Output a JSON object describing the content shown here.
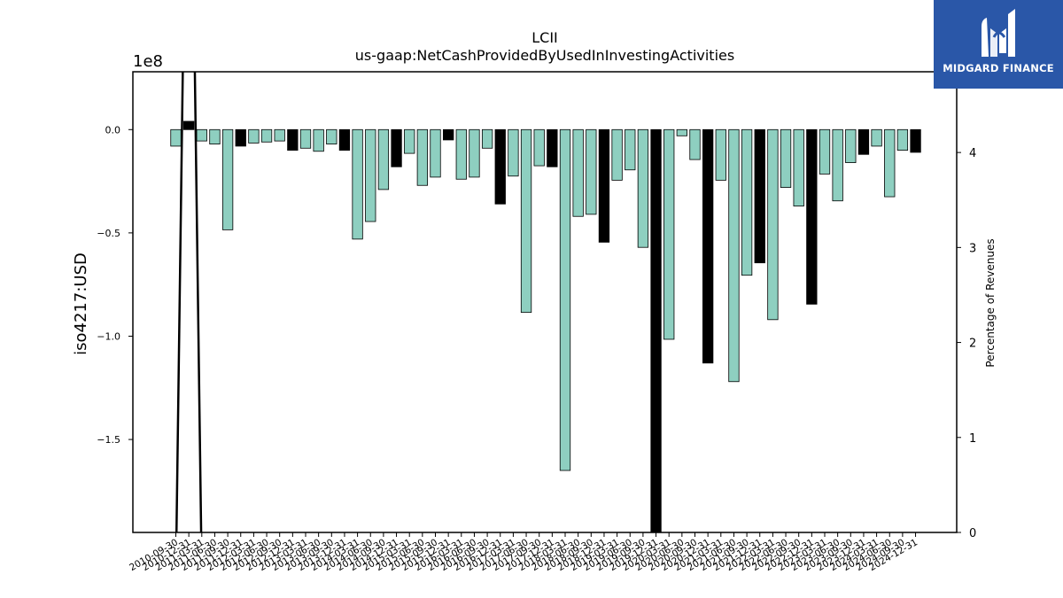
{
  "chart_data": {
    "type": "bar",
    "title": "LCII",
    "subtitle": "us-gaap:NetCashProvidedByUsedInInvestingActivities",
    "ylabel": "iso4217:USD",
    "y_offset_label": "1e8",
    "y2label": "Percentage of Revenues",
    "ylim": [
      -195000000,
      28000000
    ],
    "y2lim": [
      0,
      4.85
    ],
    "yticks": [
      {
        "value": 0,
        "label": "0.0"
      },
      {
        "value": -50000000,
        "label": "−0.5"
      },
      {
        "value": -100000000,
        "label": "−1.0"
      },
      {
        "value": -150000000,
        "label": "−1.5"
      }
    ],
    "y2ticks": [
      {
        "value": 0,
        "label": "0"
      },
      {
        "value": 1,
        "label": "1"
      },
      {
        "value": 2,
        "label": "2"
      },
      {
        "value": 3,
        "label": "3"
      },
      {
        "value": 4,
        "label": "4"
      }
    ],
    "colors": {
      "bar": "#8ecfc0",
      "annual_bar": "#000000",
      "line": "#000000"
    },
    "categories": [
      "2010-09-30",
      "2010-12-31",
      "2011-03-31",
      "2011-06-30",
      "2011-09-30",
      "2011-12-31",
      "2012-03-31",
      "2012-06-30",
      "2012-09-30",
      "2012-12-31",
      "2013-03-31",
      "2013-06-30",
      "2013-09-30",
      "2013-12-31",
      "2014-03-31",
      "2014-06-30",
      "2014-09-30",
      "2014-12-31",
      "2015-03-31",
      "2015-06-30",
      "2015-09-30",
      "2015-12-31",
      "2016-03-31",
      "2016-06-30",
      "2016-09-30",
      "2016-12-31",
      "2017-03-31",
      "2017-06-30",
      "2017-09-30",
      "2017-12-31",
      "2018-03-31",
      "2018-06-30",
      "2018-09-30",
      "2018-12-31",
      "2019-03-31",
      "2019-06-30",
      "2019-09-30",
      "2019-12-31",
      "2020-03-31",
      "2020-06-30",
      "2020-09-30",
      "2020-12-31",
      "2021-03-31",
      "2021-06-30",
      "2021-09-30",
      "2021-12-31",
      "2022-03-31",
      "2022-06-30",
      "2022-09-30",
      "2022-12-31",
      "2023-03-31",
      "2023-06-30",
      "2023-09-30",
      "2023-12-31",
      "2024-03-31",
      "2024-06-30",
      "2024-09-30",
      "2024-12-31"
    ],
    "tick_labels": [
      "2010-09-30",
      "2010-12-31",
      "2011-03-31",
      "2011-06-30",
      "2011-09-30",
      "2011-12-31",
      "2012-03-31",
      "2012-06-30",
      "2012-09-30",
      "2012-12-31",
      "2013-03-31",
      "2013-06-30",
      "2013-09-30",
      "2013-12-31",
      "2014-03-31",
      "2014-06-30",
      "2014-09-30",
      "2014-12-31",
      "2015-03-31",
      "2015-06-30",
      "2015-09-30",
      "2015-12-31",
      "2016-03-31",
      "2016-06-30",
      "2016-09-30",
      "2016-12-31",
      "2017-03-31",
      "2017-06-30",
      "2017-09-30",
      "2017-12-31",
      "2018-03-31",
      "2018-06-30",
      "2018-09-30",
      "2018-12-31",
      "2019-03-31",
      "2019-06-30",
      "2019-09-30",
      "2019-12-31",
      "2020-03-31",
      "2020-06-30",
      "2020-09-30",
      "2020-12-31",
      "2021-03-31",
      "2021-06-30",
      "2021-09-30",
      "2021-12-31",
      "2022-03-31",
      "2022-06-30",
      "2022-09-30",
      "2022-12-31",
      "2023-03-31",
      "2023-06-30",
      "2023-09-30",
      "2023-12-31",
      "2024-03-31",
      "2024-06-30",
      "2024-09-30",
      "2024-12-31"
    ],
    "values": [
      -8000000,
      4000000,
      -5500000,
      -7000000,
      -48500000,
      -8000000,
      -6500000,
      -6000000,
      -5500000,
      -10000000,
      -9000000,
      -10500000,
      -7000000,
      -10000000,
      -53000000,
      -44500000,
      -29000000,
      -18000000,
      -11500000,
      -27000000,
      -23000000,
      -5000000,
      -24000000,
      -23000000,
      -9000000,
      -36000000,
      -22500000,
      -88500000,
      -17500000,
      -18000000,
      -165000000,
      -42000000,
      -41000000,
      -54500000,
      -24500000,
      -19500000,
      -57000000,
      -198000000,
      -101500000,
      -3000000,
      -14500000,
      -113000000,
      -24500000,
      -122000000,
      -70500000,
      -64500000,
      -92000000,
      -28000000,
      -37000000,
      -84500000,
      -21500000,
      -34500000,
      -16000000,
      -12000000,
      -8000000,
      -32500000,
      -10000000,
      -11000000
    ],
    "annual": [
      false,
      true,
      false,
      false,
      false,
      true,
      false,
      false,
      false,
      true,
      false,
      false,
      false,
      true,
      false,
      false,
      false,
      true,
      false,
      false,
      false,
      true,
      false,
      false,
      false,
      true,
      false,
      false,
      false,
      true,
      false,
      false,
      false,
      true,
      false,
      false,
      false,
      true,
      false,
      false,
      false,
      true,
      false,
      false,
      false,
      true,
      false,
      false,
      false,
      true,
      false,
      false,
      false,
      true,
      false,
      false,
      false,
      true
    ],
    "series2": {
      "axis": "right",
      "type": "line",
      "points": [
        {
          "category": "2010-09-30",
          "value": -0.5
        },
        {
          "category": "2010-12-31",
          "value": 9.5
        },
        {
          "category": "2011-03-31",
          "value": -0.5
        }
      ]
    }
  },
  "logo": {
    "text": "MIDGARD FINANCE"
  }
}
